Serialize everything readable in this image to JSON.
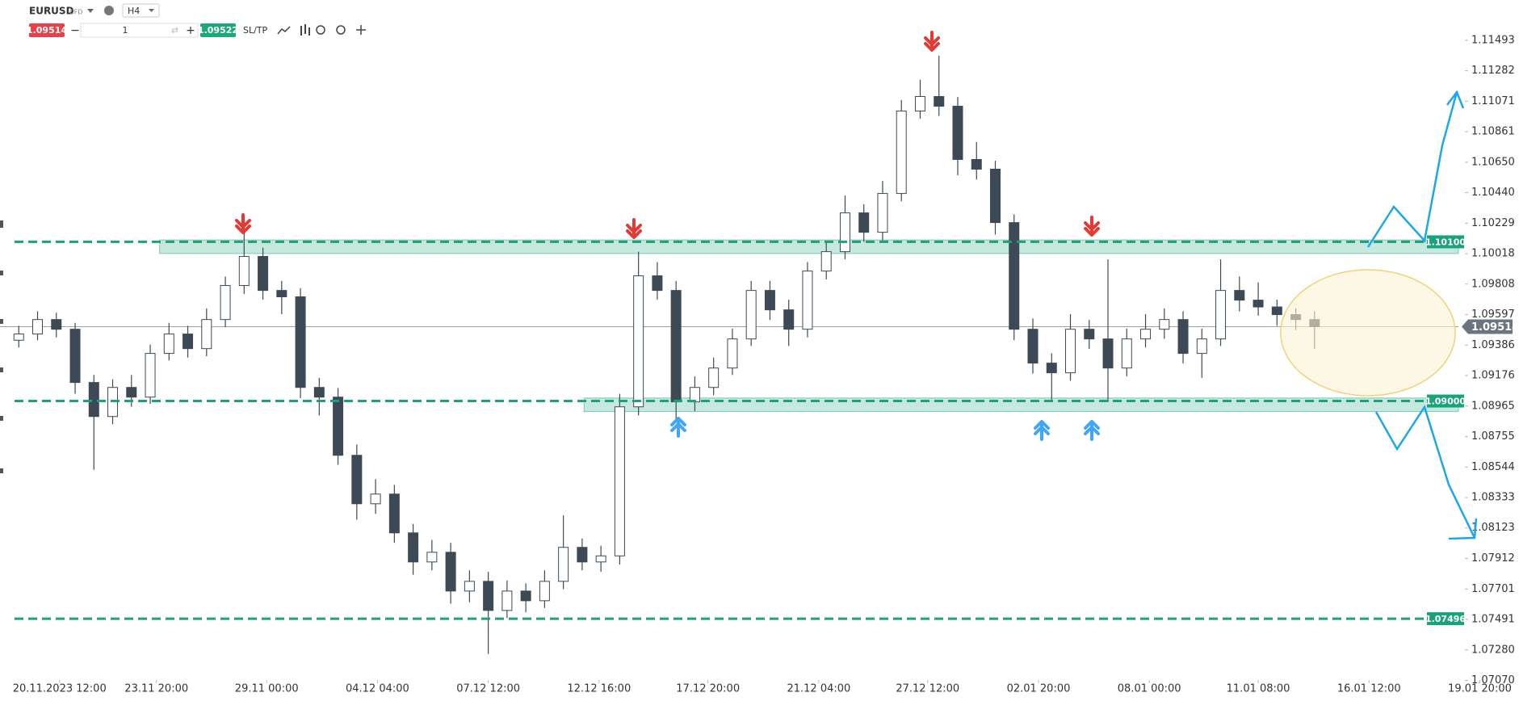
{
  "toolbar": {
    "symbol": "EURUSD",
    "symbol_type": "CFD",
    "timeframe": "H4",
    "sell_price": "1.09514",
    "quantity": "1",
    "buy_price": "1.09522",
    "sl_tp": "SL/TP"
  },
  "chart_data": {
    "type": "candlestick",
    "x": [
      0,
      1,
      2,
      3,
      4,
      5,
      6,
      7,
      8,
      9,
      10,
      11,
      12,
      13,
      14,
      15,
      16,
      17,
      18,
      19,
      20,
      21,
      22,
      23,
      24,
      25,
      26,
      27,
      28,
      29,
      30,
      31,
      32,
      33,
      34,
      35,
      36,
      37,
      38,
      39,
      40,
      41,
      42,
      43,
      44,
      45,
      46,
      47,
      48,
      49,
      50,
      51,
      52,
      53,
      54,
      55,
      56,
      57,
      58,
      59,
      60,
      61,
      62,
      63,
      64,
      65,
      66,
      67,
      68,
      69
    ],
    "open": [
      1.0942,
      1.09463,
      1.09563,
      1.09496,
      1.09128,
      1.08893,
      1.09094,
      1.09027,
      1.09329,
      1.09463,
      1.09362,
      1.09563,
      1.09798,
      1.09999,
      1.09764,
      1.0972,
      1.09094,
      1.09027,
      1.08625,
      1.0829,
      1.08357,
      1.08089,
      1.07888,
      1.07955,
      1.07687,
      1.07754,
      1.07553,
      1.07687,
      1.0762,
      1.07754,
      1.07989,
      1.07888,
      1.0793,
      1.0896,
      1.09865,
      1.09764,
      1.08994,
      1.09094,
      1.09228,
      1.09429,
      1.09764,
      1.0963,
      1.09496,
      1.09898,
      1.10032,
      1.103,
      1.10166,
      1.10434,
      1.11004,
      1.11104,
      1.11037,
      1.10669,
      1.10602,
      1.10233,
      1.09496,
      1.09262,
      1.09195,
      1.09496,
      1.09429,
      1.09228,
      1.09429,
      1.09496,
      1.09563,
      1.09329,
      1.09429,
      1.09764,
      1.09697,
      1.0965,
      1.09597,
      1.09563
    ],
    "high": [
      1.0952,
      1.0962,
      1.0961,
      1.0954,
      1.0918,
      1.0915,
      1.0918,
      1.0939,
      1.0954,
      1.0952,
      1.0964,
      1.0986,
      1.10166,
      1.1006,
      1.0983,
      1.0978,
      1.0916,
      1.0909,
      1.087,
      1.0846,
      1.0842,
      1.0815,
      1.0804,
      1.0802,
      1.0783,
      1.0782,
      1.0776,
      1.0774,
      1.0783,
      1.0821,
      1.0805,
      1.08,
      1.0905,
      1.10032,
      1.0996,
      1.0983,
      1.0917,
      1.093,
      1.095,
      1.0983,
      1.0983,
      1.097,
      1.0996,
      1.101,
      1.1042,
      1.1036,
      1.1052,
      1.1108,
      1.1122,
      1.11386,
      1.111,
      1.1079,
      1.1066,
      1.1029,
      1.0957,
      1.0933,
      1.096,
      1.0956,
      1.09979,
      1.095,
      1.096,
      1.0964,
      1.0962,
      1.095,
      1.09979,
      1.0986,
      1.0982,
      1.097,
      1.0964,
      1.0962
    ],
    "low": [
      1.0937,
      1.0942,
      1.0944,
      1.0905,
      1.08525,
      1.0884,
      1.0896,
      1.0898,
      1.0928,
      1.093,
      1.0931,
      1.0951,
      1.0974,
      1.097,
      1.096,
      1.0902,
      1.089,
      1.0856,
      1.0818,
      1.0822,
      1.0802,
      1.078,
      1.0783,
      1.076,
      1.0761,
      1.07252,
      1.075,
      1.0754,
      1.0757,
      1.077,
      1.0783,
      1.0782,
      1.0787,
      1.089,
      1.097,
      1.0886,
      1.0893,
      1.0904,
      1.0918,
      1.0938,
      1.0956,
      1.0938,
      1.0944,
      1.0984,
      1.0998,
      1.101,
      1.1011,
      1.1038,
      1.1095,
      1.1097,
      1.1056,
      1.1053,
      1.1015,
      1.0942,
      1.0919,
      1.08994,
      1.0914,
      1.0936,
      1.08994,
      1.0917,
      1.0937,
      1.0943,
      1.0926,
      1.0916,
      1.0938,
      1.0962,
      1.0959,
      1.0952,
      1.0949,
      1.0936
    ],
    "close": [
      1.09463,
      1.09563,
      1.09496,
      1.09128,
      1.08893,
      1.09094,
      1.09027,
      1.09329,
      1.09463,
      1.09362,
      1.09563,
      1.09798,
      1.09999,
      1.09764,
      1.0972,
      1.09094,
      1.09027,
      1.08625,
      1.0829,
      1.08357,
      1.08089,
      1.07888,
      1.07955,
      1.07687,
      1.07754,
      1.07553,
      1.07687,
      1.0762,
      1.07754,
      1.07989,
      1.07888,
      1.0793,
      1.0896,
      1.09865,
      1.09764,
      1.08994,
      1.09094,
      1.09228,
      1.09429,
      1.09764,
      1.0963,
      1.09496,
      1.09898,
      1.10032,
      1.103,
      1.10166,
      1.10434,
      1.11004,
      1.11104,
      1.11037,
      1.10669,
      1.10602,
      1.10233,
      1.09496,
      1.09262,
      1.09195,
      1.09496,
      1.09429,
      1.09228,
      1.09429,
      1.09496,
      1.09563,
      1.09329,
      1.09429,
      1.09764,
      1.09697,
      1.0965,
      1.09597,
      1.09563,
      1.09514
    ],
    "up_color": "#ffffff",
    "down_color": "#3d4a55",
    "wick_color": "#3d4a55",
    "xlim": [
      -1,
      79.5
    ],
    "ylim": [
      1.0705,
      1.1157
    ],
    "xticks": [
      {
        "value": 2.17,
        "label": "20.11.2023 12:00"
      },
      {
        "value": 7.33,
        "label": "23.11 20:00"
      },
      {
        "value": 13.2,
        "label": "29.11 00:00"
      },
      {
        "value": 19.1,
        "label": "04.12 04:00"
      },
      {
        "value": 25,
        "label": "07.12 12:00"
      },
      {
        "value": 30.9,
        "label": "12.12 16:00"
      },
      {
        "value": 36.7,
        "label": "17.12 20:00"
      },
      {
        "value": 42.6,
        "label": "21.12 04:00"
      },
      {
        "value": 48.4,
        "label": "27.12 12:00"
      },
      {
        "value": 54.3,
        "label": "02.01 20:00"
      },
      {
        "value": 60.2,
        "label": "08.01 00:00"
      },
      {
        "value": 66,
        "label": "11.01 08:00"
      },
      {
        "value": 71.9,
        "label": "16.01 12:00"
      },
      {
        "value": 77.8,
        "label": "19.01 20:00"
      }
    ],
    "yticks": [
      1.11493,
      1.11282,
      1.11071,
      1.10861,
      {
        "value": 1.1065,
        "label": "1.10650"
      },
      {
        "value": 1.1044,
        "label": "1.10440"
      },
      1.10229,
      1.10018,
      1.09808,
      1.09597,
      1.09386,
      1.09176,
      1.08965,
      1.08755,
      1.08544,
      1.08333,
      1.08123,
      1.07912,
      1.07701,
      1.07491,
      {
        "value": 1.0728,
        "label": "1.07280"
      },
      {
        "value": 1.0707,
        "label": "1.07070"
      }
    ],
    "levels": [
      {
        "value": 1.101,
        "label": "1.10100"
      },
      {
        "value": 1.09,
        "label": "1.09000"
      },
      1.07496
    ],
    "level_color": "#1aa37a",
    "zones": [
      {
        "low": 1.10019,
        "high": 1.10113,
        "from": 7.5
      },
      {
        "low": 1.08927,
        "high": 1.09021,
        "from": 30.1
      }
    ],
    "last_price": 1.09514,
    "grid": false
  }
}
